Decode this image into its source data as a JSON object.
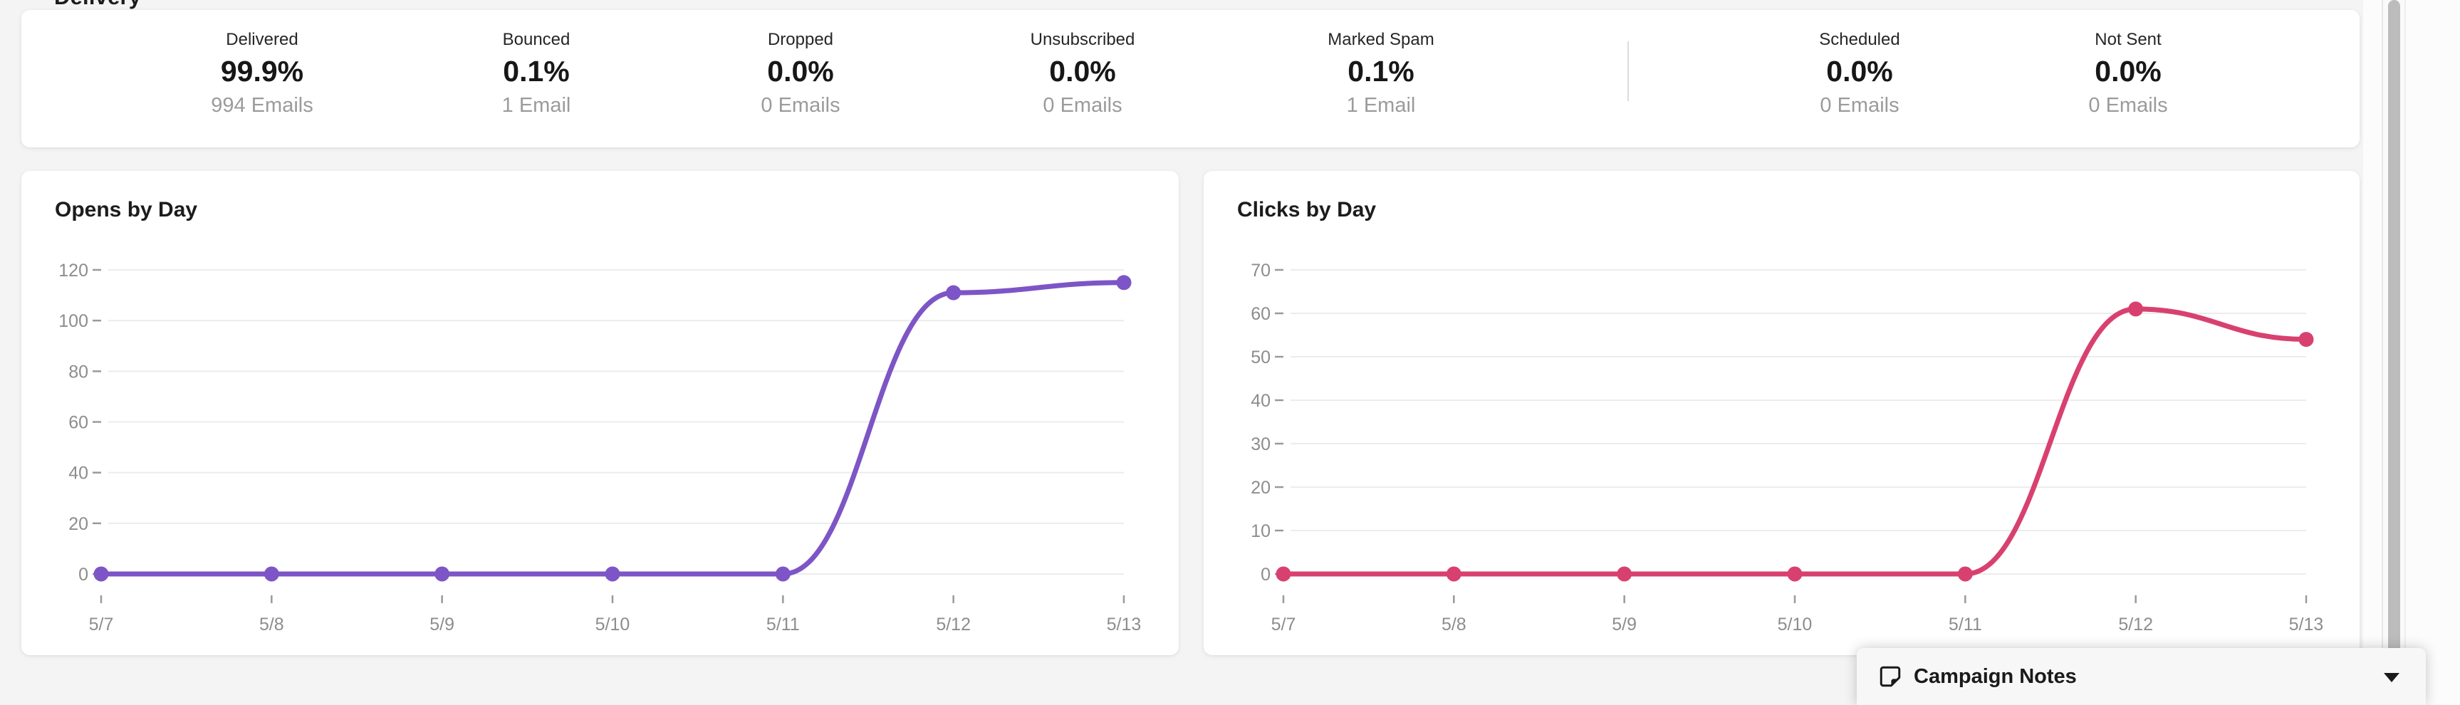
{
  "page": {
    "background": "#f4f4f4"
  },
  "delivery": {
    "heading": "Delivery",
    "stats": [
      {
        "label": "Delivered",
        "value": "99.9%",
        "detail": "994 Emails"
      },
      {
        "label": "Bounced",
        "value": "0.1%",
        "detail": "1 Email"
      },
      {
        "label": "Dropped",
        "value": "0.0%",
        "detail": "0 Emails"
      },
      {
        "label": "Unsubscribed",
        "value": "0.0%",
        "detail": "0 Emails"
      },
      {
        "label": "Marked Spam",
        "value": "0.1%",
        "detail": "1 Email"
      },
      {
        "label": "Scheduled",
        "value": "0.0%",
        "detail": "0 Emails"
      },
      {
        "label": "Not Sent",
        "value": "0.0%",
        "detail": "0 Emails"
      }
    ],
    "divider_after_index": 4
  },
  "chart_style": {
    "grid_color": "#ececec",
    "tick_color": "#9a9a9a",
    "axis_text_color": "#8d8d8d"
  },
  "chart_data": [
    {
      "type": "line",
      "name": "opens-by-day-chart",
      "title": "Opens by Day",
      "x": [
        "5/7",
        "5/8",
        "5/9",
        "5/10",
        "5/11",
        "5/12",
        "5/13"
      ],
      "series": [
        {
          "name": "Opens",
          "values": [
            0,
            0,
            0,
            0,
            0,
            111,
            115
          ]
        }
      ],
      "color": "#7d55c6",
      "ylim": [
        0,
        120
      ],
      "ytick_step": 20,
      "grid": true,
      "legend": "none"
    },
    {
      "type": "line",
      "name": "clicks-by-day-chart",
      "title": "Clicks by Day",
      "x": [
        "5/7",
        "5/8",
        "5/9",
        "5/10",
        "5/11",
        "5/12",
        "5/13"
      ],
      "series": [
        {
          "name": "Clicks",
          "values": [
            0,
            0,
            0,
            0,
            0,
            61,
            54
          ]
        }
      ],
      "color": "#d8416f",
      "ylim": [
        0,
        70
      ],
      "ytick_step": 10,
      "grid": true,
      "legend": "none"
    }
  ],
  "campaign_notes": {
    "title": "Campaign Notes",
    "icon": "note-icon",
    "collapse_icon": "caret-down-icon"
  },
  "scrollbar": {
    "thumb_color": "#bcbcbc",
    "track_color": "#fafafa"
  }
}
